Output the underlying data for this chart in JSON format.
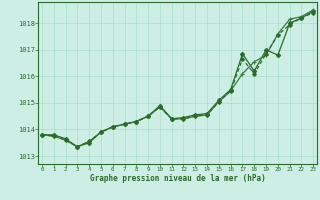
{
  "x": [
    0,
    1,
    2,
    3,
    4,
    5,
    6,
    7,
    8,
    9,
    10,
    11,
    12,
    13,
    14,
    15,
    16,
    17,
    18,
    19,
    20,
    21,
    22,
    23
  ],
  "line1": [
    1013.8,
    1013.8,
    1013.65,
    1013.35,
    1013.5,
    1013.9,
    1014.1,
    1014.2,
    1014.3,
    1014.5,
    1014.9,
    1014.4,
    1014.45,
    1014.55,
    1014.6,
    1015.1,
    1015.5,
    1016.85,
    1016.2,
    1017.0,
    1016.8,
    1018.0,
    1018.2,
    1018.45
  ],
  "line2": [
    1013.8,
    1013.75,
    1013.6,
    1013.35,
    1013.55,
    1013.9,
    1014.1,
    1014.2,
    1014.3,
    1014.5,
    1014.85,
    1014.4,
    1014.4,
    1014.5,
    1014.55,
    1015.05,
    1015.45,
    1016.1,
    1016.55,
    1016.8,
    1017.6,
    1018.15,
    1018.25,
    1018.5
  ],
  "line3": [
    1013.8,
    1013.75,
    1013.6,
    1013.35,
    1013.55,
    1013.9,
    1014.1,
    1014.2,
    1014.3,
    1014.5,
    1014.85,
    1014.4,
    1014.4,
    1014.5,
    1014.55,
    1015.05,
    1015.45,
    1016.65,
    1016.1,
    1016.85,
    1017.55,
    1017.95,
    1018.2,
    1018.4
  ],
  "bg_color": "#cceee4",
  "grid_color": "#aaddcc",
  "line_color_dark": "#2d6a2d",
  "line_color_med": "#3a7a3a",
  "xlabel": "Graphe pression niveau de la mer (hPa)",
  "xticks": [
    0,
    1,
    2,
    3,
    4,
    5,
    6,
    7,
    8,
    9,
    10,
    11,
    12,
    13,
    14,
    15,
    16,
    17,
    18,
    19,
    20,
    21,
    22,
    23
  ],
  "yticks": [
    1013,
    1014,
    1015,
    1016,
    1017,
    1018
  ],
  "ylim": [
    1012.7,
    1018.8
  ],
  "xlim": [
    -0.3,
    23.3
  ]
}
